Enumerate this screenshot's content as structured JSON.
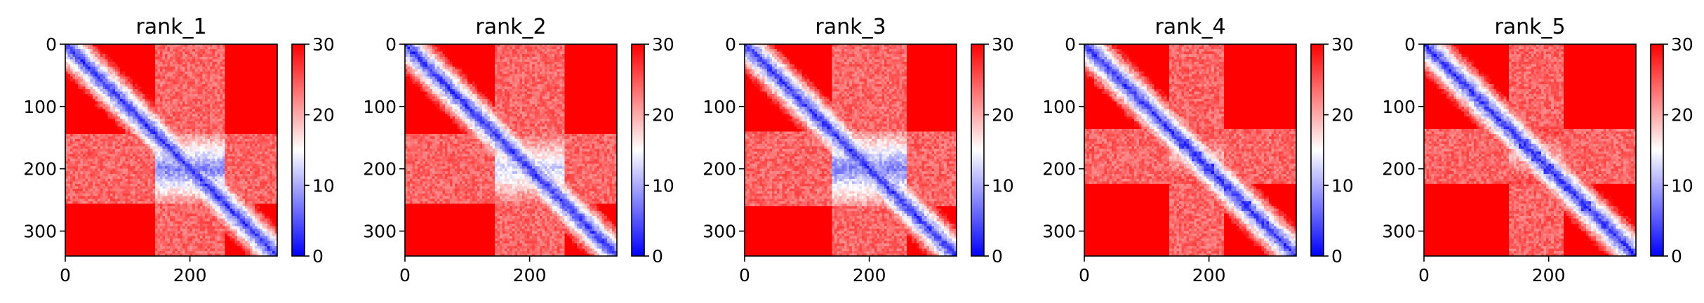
{
  "chart_data": [
    {
      "type": "heatmap",
      "title": "rank_1",
      "xticks": [
        0,
        200
      ],
      "yticks": [
        0,
        100,
        200,
        300
      ],
      "xlim": [
        0,
        340
      ],
      "ylim": [
        340,
        0
      ],
      "colorbar": {
        "ticks": [
          0,
          10,
          20,
          30
        ],
        "vmin": 0,
        "vmax": 30,
        "colormap": "bwr"
      },
      "pattern": {
        "diagonal": "low",
        "background": "high",
        "core_center": 200,
        "core_halfwidth": 55,
        "core_strength": 0.75,
        "blobs": []
      }
    },
    {
      "type": "heatmap",
      "title": "rank_2",
      "xticks": [
        0,
        200
      ],
      "yticks": [
        0,
        100,
        200,
        300
      ],
      "xlim": [
        0,
        340
      ],
      "ylim": [
        340,
        0
      ],
      "colorbar": {
        "ticks": [
          0,
          10,
          20,
          30
        ],
        "vmin": 0,
        "vmax": 30,
        "colormap": "bwr"
      },
      "pattern": {
        "diagonal": "low",
        "background": "high",
        "core_center": 200,
        "core_halfwidth": 55,
        "core_strength": 0.6,
        "blobs": []
      }
    },
    {
      "type": "heatmap",
      "title": "rank_3",
      "xticks": [
        0,
        200
      ],
      "yticks": [
        0,
        100,
        200,
        300
      ],
      "xlim": [
        0,
        340
      ],
      "ylim": [
        340,
        0
      ],
      "colorbar": {
        "ticks": [
          0,
          10,
          20,
          30
        ],
        "vmin": 0,
        "vmax": 30,
        "colormap": "bwr"
      },
      "pattern": {
        "diagonal": "low",
        "background": "high",
        "core_center": 200,
        "core_halfwidth": 60,
        "core_strength": 0.75,
        "blobs": []
      }
    },
    {
      "type": "heatmap",
      "title": "rank_4",
      "xticks": [
        0,
        200
      ],
      "yticks": [
        0,
        100,
        200,
        300
      ],
      "xlim": [
        0,
        340
      ],
      "ylim": [
        340,
        0
      ],
      "colorbar": {
        "ticks": [
          0,
          10,
          20,
          30
        ],
        "vmin": 0,
        "vmax": 30,
        "colormap": "bwr"
      },
      "pattern": {
        "diagonal": "low",
        "background": "high",
        "core_center": 180,
        "core_halfwidth": 45,
        "core_strength": 0.35,
        "blobs": [
          160,
          180,
          200,
          230,
          260,
          290
        ]
      }
    },
    {
      "type": "heatmap",
      "title": "rank_5",
      "xticks": [
        0,
        200
      ],
      "yticks": [
        0,
        100,
        200,
        300
      ],
      "xlim": [
        0,
        340
      ],
      "ylim": [
        340,
        0
      ],
      "colorbar": {
        "ticks": [
          0,
          10,
          20,
          30
        ],
        "vmin": 0,
        "vmax": 30,
        "colormap": "bwr"
      },
      "pattern": {
        "diagonal": "low",
        "background": "high",
        "core_center": 180,
        "core_halfwidth": 45,
        "core_strength": 0.35,
        "blobs": [
          160,
          180,
          200,
          230,
          260,
          290
        ]
      }
    }
  ]
}
